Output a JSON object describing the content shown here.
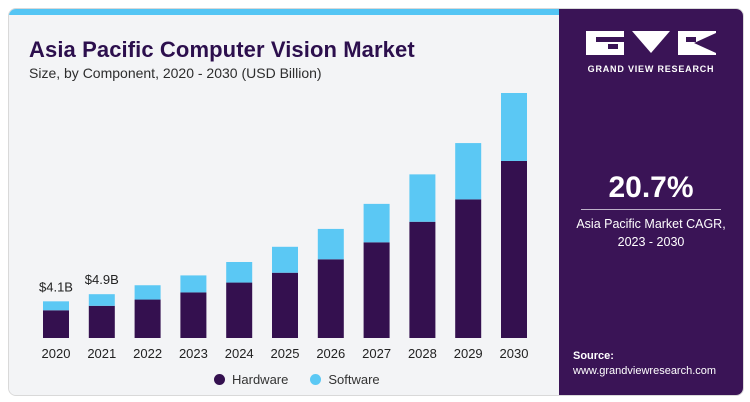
{
  "header": {
    "title": "Asia Pacific Computer Vision Market",
    "subtitle": "Size, by Component, 2020 - 2030 (USD Billion)"
  },
  "legend": {
    "hardware": "Hardware",
    "software": "Software"
  },
  "sidebar": {
    "brand": "GRAND VIEW RESEARCH",
    "cagr_value": "20.7%",
    "cagr_label_1": "Asia Pacific Market CAGR,",
    "cagr_label_2": "2023 - 2030",
    "source_label": "Source:",
    "source_url": "www.grandviewresearch.com"
  },
  "colors": {
    "hardware": "#34104f",
    "software": "#5bc8f4",
    "sidebar_bg": "#3a1456",
    "accent_bar": "#54c5f4"
  },
  "chart_data": {
    "type": "bar",
    "stacked": true,
    "title": "Asia Pacific Computer Vision Market",
    "subtitle": "Size, by Component, 2020 - 2030 (USD Billion)",
    "categories": [
      "2020",
      "2021",
      "2022",
      "2023",
      "2024",
      "2025",
      "2026",
      "2027",
      "2028",
      "2029",
      "2030"
    ],
    "series": [
      {
        "name": "Hardware",
        "values": [
          3.1,
          3.6,
          4.3,
          5.1,
          6.2,
          7.3,
          8.8,
          10.7,
          13.0,
          15.5,
          19.8
        ]
      },
      {
        "name": "Software",
        "values": [
          1.0,
          1.3,
          1.6,
          1.9,
          2.3,
          2.9,
          3.4,
          4.3,
          5.3,
          6.3,
          7.6
        ]
      }
    ],
    "annotations": [
      {
        "category": "2020",
        "text": "$4.1B"
      },
      {
        "category": "2021",
        "text": "$4.9B"
      }
    ],
    "ylim": [
      0,
      27.4
    ],
    "grid": false,
    "legend": "bottom-center"
  }
}
